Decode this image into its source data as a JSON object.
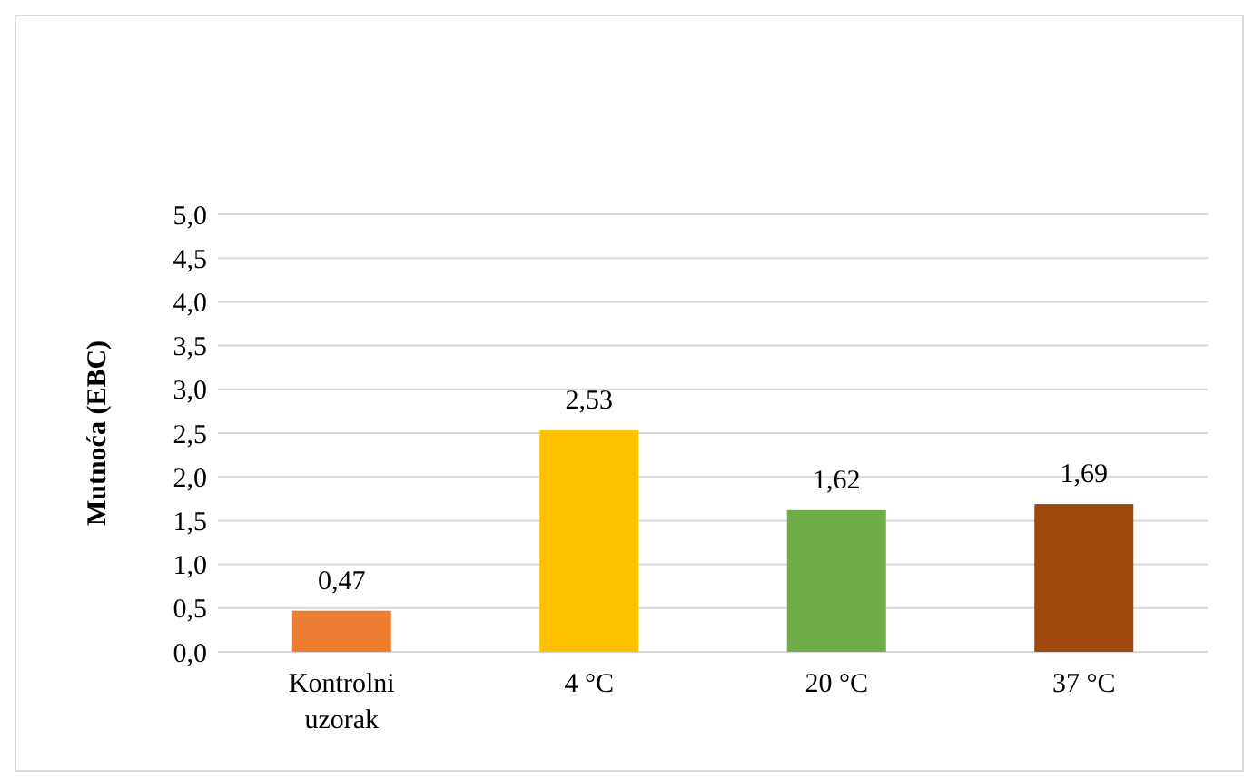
{
  "chart_data": {
    "type": "bar",
    "ylabel": "Mutnoća (EBC)",
    "categories": [
      "Kontrolni uzorak",
      "4 °C",
      "20 °C",
      "37 °C"
    ],
    "values": [
      0.47,
      2.53,
      1.62,
      1.69
    ],
    "colors": [
      "#ed7d31",
      "#ffc000",
      "#70ad47",
      "#9e480e"
    ],
    "value_labels": [
      "0,47",
      "2,53",
      "1,62",
      "1,69"
    ],
    "ylim": [
      0,
      5
    ],
    "yticks": [
      {
        "value": 0,
        "label": "0,0"
      },
      {
        "value": 0.5,
        "label": "0,5"
      },
      {
        "value": 1,
        "label": "1,0"
      },
      {
        "value": 1.5,
        "label": "1,5"
      },
      {
        "value": 2,
        "label": "2,0"
      },
      {
        "value": 2.5,
        "label": "2,5"
      },
      {
        "value": 3,
        "label": "3,0"
      },
      {
        "value": 3.5,
        "label": "3,5"
      },
      {
        "value": 4,
        "label": "4,0"
      },
      {
        "value": 4.5,
        "label": "4,5"
      },
      {
        "value": 5,
        "label": "5,0"
      }
    ],
    "grid": "y"
  }
}
